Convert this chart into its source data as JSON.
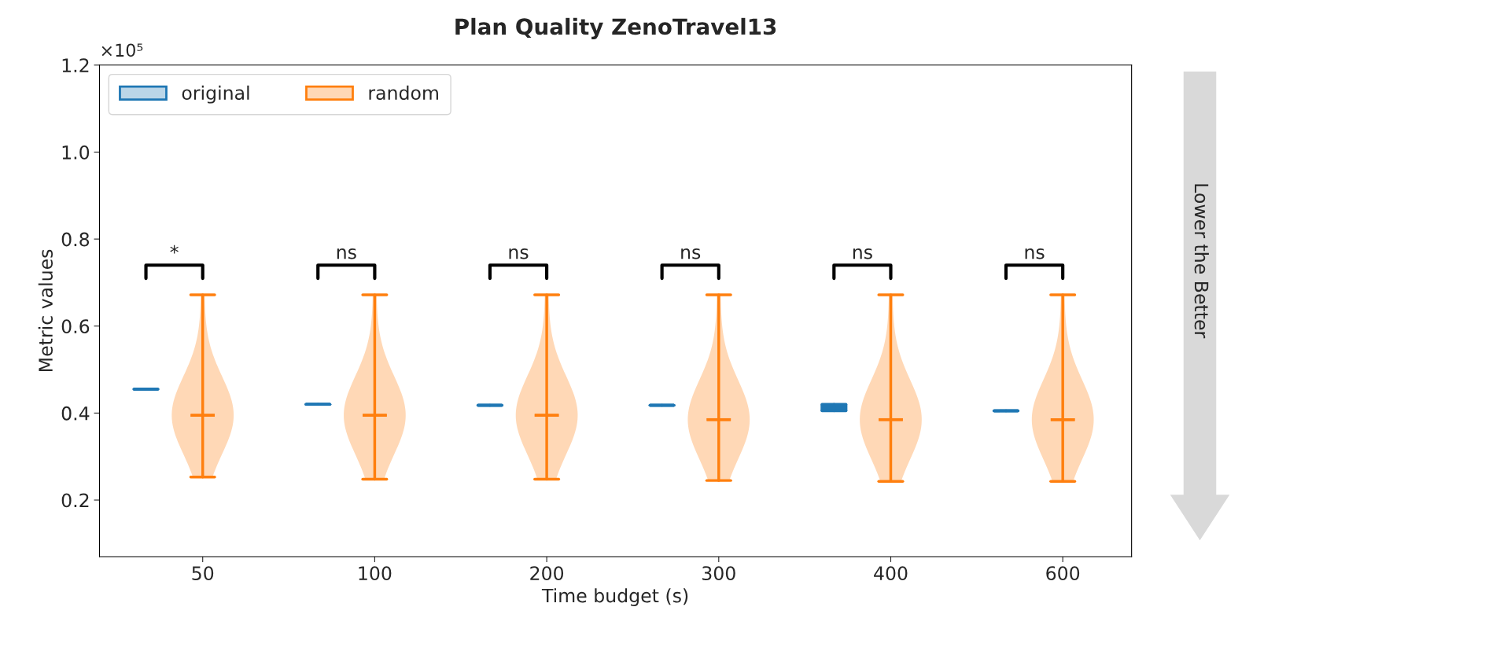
{
  "chart_data": {
    "type": "box",
    "title": "Plan Quality ZenoTravel13",
    "xlabel": "Time budget (s)",
    "ylabel": "Metric values",
    "categories": [
      "50",
      "100",
      "200",
      "300",
      "400",
      "600"
    ],
    "ylim": [
      0.07,
      1.2
    ],
    "yticks": [
      0.2,
      0.4,
      0.6,
      0.8,
      {
        "value": 1.0,
        "label": "1.0"
      },
      1.2
    ],
    "grid": false,
    "legend": "top left",
    "series": [
      {
        "name": "original",
        "color": "#1f77b4",
        "boxes": [
          {
            "low": 0.455,
            "q1": 0.455,
            "median": 0.455,
            "q3": 0.455,
            "high": 0.455
          },
          {
            "low": 0.42,
            "q1": 0.42,
            "median": 0.42,
            "q3": 0.42,
            "high": 0.42
          },
          {
            "low": 0.418,
            "q1": 0.418,
            "median": 0.418,
            "q3": 0.418,
            "high": 0.418
          },
          {
            "low": 0.418,
            "q1": 0.418,
            "median": 0.418,
            "q3": 0.418,
            "high": 0.418
          },
          {
            "low": 0.405,
            "q1": 0.408,
            "median": 0.412,
            "q3": 0.416,
            "high": 0.42
          },
          {
            "low": 0.405,
            "q1": 0.405,
            "median": 0.405,
            "q3": 0.405,
            "high": 0.405
          }
        ]
      },
      {
        "name": "random",
        "color": "#ff7f0e",
        "boxes": [
          {
            "low": 0.253,
            "q1": 0.395,
            "median": 0.395,
            "q3": 0.395,
            "high": 0.672
          },
          {
            "low": 0.248,
            "q1": 0.395,
            "median": 0.395,
            "q3": 0.395,
            "high": 0.672
          },
          {
            "low": 0.248,
            "q1": 0.395,
            "median": 0.395,
            "q3": 0.395,
            "high": 0.672
          },
          {
            "low": 0.245,
            "q1": 0.385,
            "median": 0.385,
            "q3": 0.385,
            "high": 0.672
          },
          {
            "low": 0.243,
            "q1": 0.385,
            "median": 0.385,
            "q3": 0.385,
            "high": 0.672
          },
          {
            "low": 0.243,
            "q1": 0.385,
            "median": 0.385,
            "q3": 0.385,
            "high": 0.672
          }
        ]
      }
    ],
    "annotations": [
      "×10⁵",
      "*",
      "ns",
      "ns",
      "ns",
      "ns",
      "ns",
      "Lower the Better"
    ]
  }
}
